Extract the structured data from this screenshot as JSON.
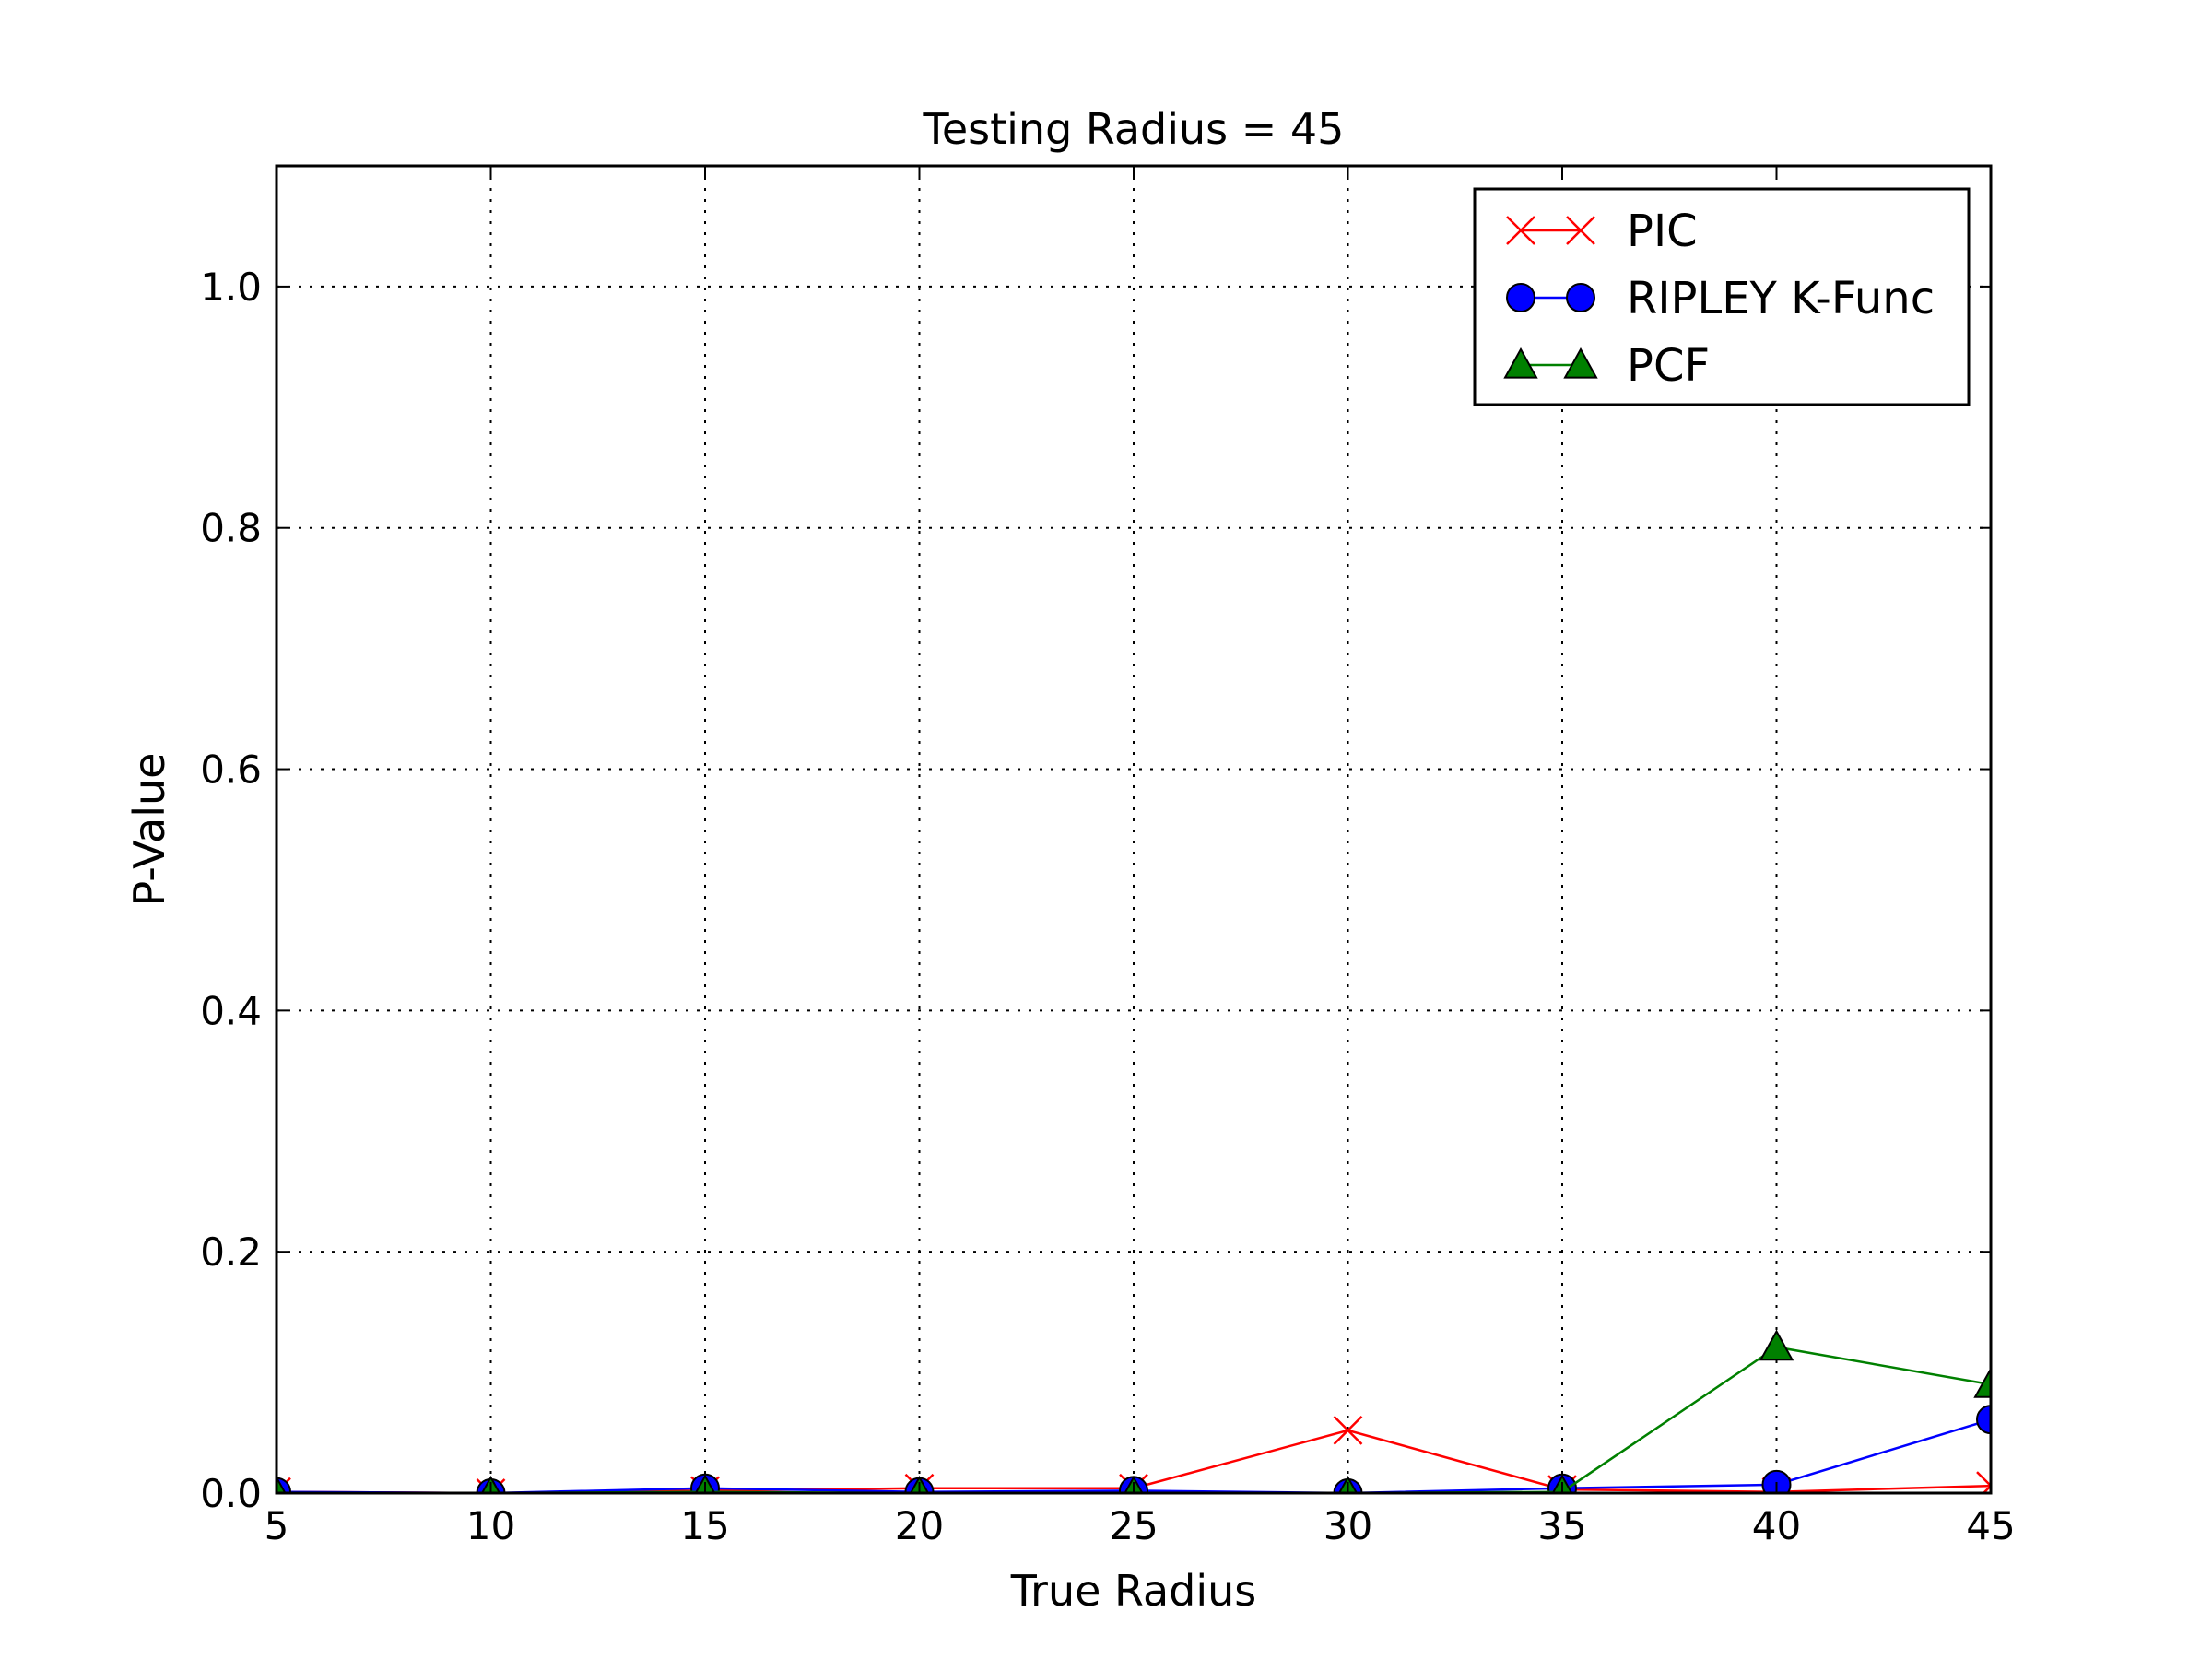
{
  "chart_data": {
    "type": "line",
    "title": "Testing Radius = 45",
    "xlabel": "True Radius",
    "ylabel": "P-Value",
    "x": [
      5,
      10,
      15,
      20,
      25,
      30,
      35,
      40,
      45
    ],
    "xlim": [
      5,
      45
    ],
    "ylim": [
      0,
      1.1
    ],
    "xticks": [
      5,
      10,
      15,
      20,
      25,
      30,
      35,
      40,
      45
    ],
    "yticks": [
      0.0,
      0.2,
      0.4,
      0.6,
      0.8,
      1.0
    ],
    "ytick_labels": [
      "0.0",
      "0.2",
      "0.4",
      "0.6",
      "0.8",
      "1.0"
    ],
    "grid": true,
    "legend_position": "top-right",
    "series": [
      {
        "name": "PIC",
        "marker": "x",
        "color": "#ff0000",
        "values": [
          0.001,
          0.0,
          0.002,
          0.004,
          0.004,
          0.052,
          0.003,
          0.001,
          0.006
        ]
      },
      {
        "name": "RIPLEY K-Func",
        "marker": "circle",
        "color": "#0000ff",
        "values": [
          0.001,
          0.0,
          0.004,
          0.001,
          0.002,
          0.0,
          0.004,
          0.007,
          0.061
        ]
      },
      {
        "name": "PCF",
        "marker": "triangle",
        "color": "#008000",
        "values": [
          0.0,
          0.0,
          0.001,
          0.0,
          0.0,
          0.0,
          0.001,
          0.121,
          0.09
        ]
      }
    ]
  }
}
